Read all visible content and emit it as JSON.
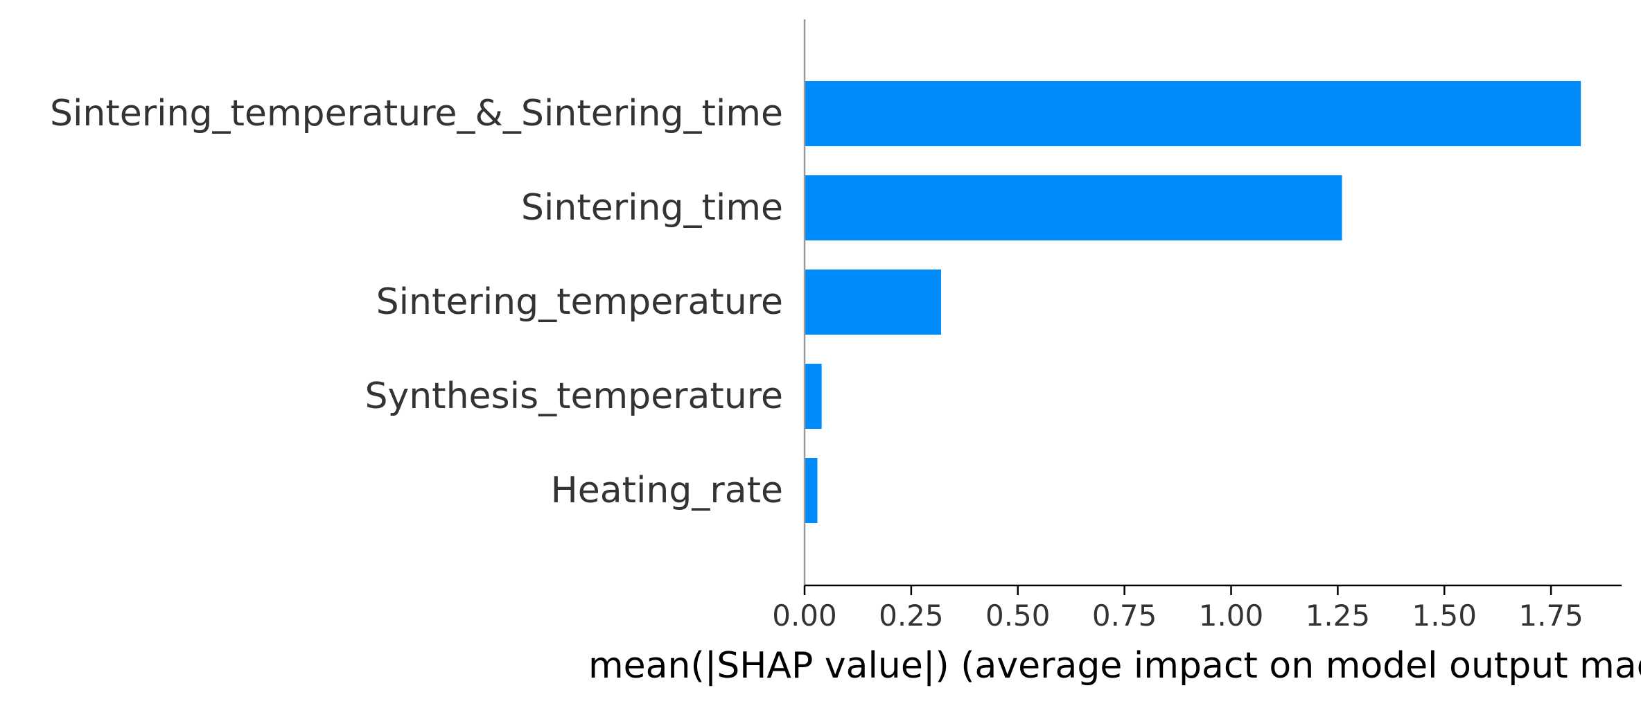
{
  "chart_data": {
    "type": "bar",
    "orientation": "horizontal",
    "categories": [
      "Sintering_temperature_&_Sintering_time",
      "Sintering_time",
      "Sintering_temperature",
      "Synthesis_temperature",
      "Heating_rate"
    ],
    "values": [
      1.82,
      1.26,
      0.32,
      0.04,
      0.03
    ],
    "xlabel": "mean(|SHAP value|) (average impact on model output magnitude)",
    "ylabel": "",
    "title": "",
    "xlim": [
      0,
      1.91
    ],
    "xticks": [
      "0.00",
      "0.25",
      "0.50",
      "0.75",
      "1.00",
      "1.25",
      "1.50",
      "1.75"
    ],
    "xtick_values": [
      0,
      0.25,
      0.5,
      0.75,
      1.0,
      1.25,
      1.5,
      1.75
    ],
    "grid": false,
    "bar_color": "#008bfb"
  }
}
